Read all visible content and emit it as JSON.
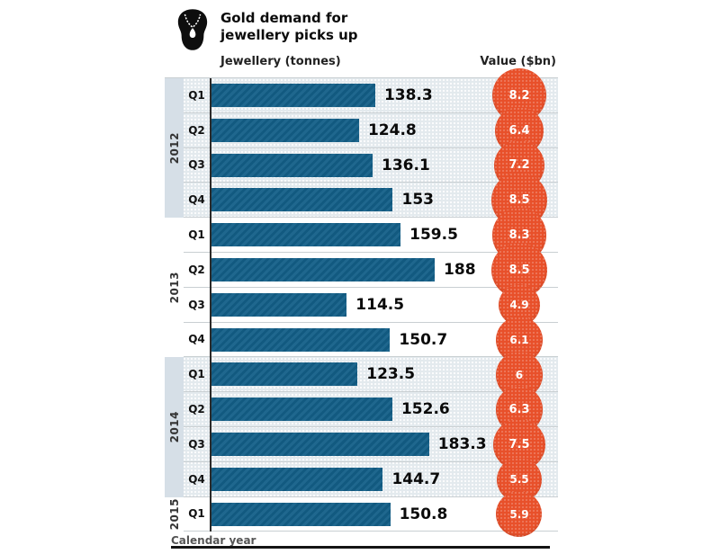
{
  "header": {
    "icon": "necklace-icon",
    "title_line1": "Gold demand for",
    "title_line2": "jewellery picks up",
    "left_axis_label": "Jewellery (tonnes)",
    "right_axis_label": "Value ($bn)"
  },
  "footer": {
    "axis_note": "Calendar year"
  },
  "colors": {
    "bar_blue": "#135f88",
    "bubble_red": "#e8502a",
    "shaded_band": "#e3eaee",
    "shaded_year_column": "#d6dfe7",
    "separator": "#c9cfd2"
  },
  "chart_data": {
    "type": "bar",
    "orientation": "horizontal",
    "title": "Gold demand for jewellery picks up",
    "primary_series_label": "Jewellery (tonnes)",
    "secondary_series_label": "Value ($bn)",
    "x_axis_note": "Calendar year",
    "categories": [
      "2012 Q1",
      "2012 Q2",
      "2012 Q3",
      "2012 Q4",
      "2013 Q1",
      "2013 Q2",
      "2013 Q3",
      "2013 Q4",
      "2014 Q1",
      "2014 Q2",
      "2014 Q3",
      "2014 Q4",
      "2015 Q1"
    ],
    "series": [
      {
        "name": "Jewellery (tonnes)",
        "values": [
          138.3,
          124.8,
          136.1,
          153,
          159.5,
          188,
          114.5,
          150.7,
          123.5,
          152.6,
          183.3,
          144.7,
          150.8
        ]
      },
      {
        "name": "Value ($bn)",
        "values": [
          8.2,
          6.4,
          7.2,
          8.5,
          8.3,
          8.5,
          4.9,
          6.1,
          6,
          6.3,
          7.5,
          5.5,
          5.9
        ]
      }
    ],
    "groups": [
      {
        "year": "2012",
        "shaded": true,
        "rows": [
          {
            "quarter": "Q1",
            "tonnes": 138.3,
            "value_bn": 8.2
          },
          {
            "quarter": "Q2",
            "tonnes": 124.8,
            "value_bn": 6.4
          },
          {
            "quarter": "Q3",
            "tonnes": 136.1,
            "value_bn": 7.2
          },
          {
            "quarter": "Q4",
            "tonnes": 153,
            "value_bn": 8.5
          }
        ]
      },
      {
        "year": "2013",
        "shaded": false,
        "rows": [
          {
            "quarter": "Q1",
            "tonnes": 159.5,
            "value_bn": 8.3
          },
          {
            "quarter": "Q2",
            "tonnes": 188,
            "value_bn": 8.5
          },
          {
            "quarter": "Q3",
            "tonnes": 114.5,
            "value_bn": 4.9
          },
          {
            "quarter": "Q4",
            "tonnes": 150.7,
            "value_bn": 6.1
          }
        ]
      },
      {
        "year": "2014",
        "shaded": true,
        "rows": [
          {
            "quarter": "Q1",
            "tonnes": 123.5,
            "value_bn": 6
          },
          {
            "quarter": "Q2",
            "tonnes": 152.6,
            "value_bn": 6.3
          },
          {
            "quarter": "Q3",
            "tonnes": 183.3,
            "value_bn": 7.5
          },
          {
            "quarter": "Q4",
            "tonnes": 144.7,
            "value_bn": 5.5
          }
        ]
      },
      {
        "year": "2015",
        "shaded": false,
        "rows": [
          {
            "quarter": "Q1",
            "tonnes": 150.8,
            "value_bn": 5.9
          }
        ]
      }
    ]
  }
}
